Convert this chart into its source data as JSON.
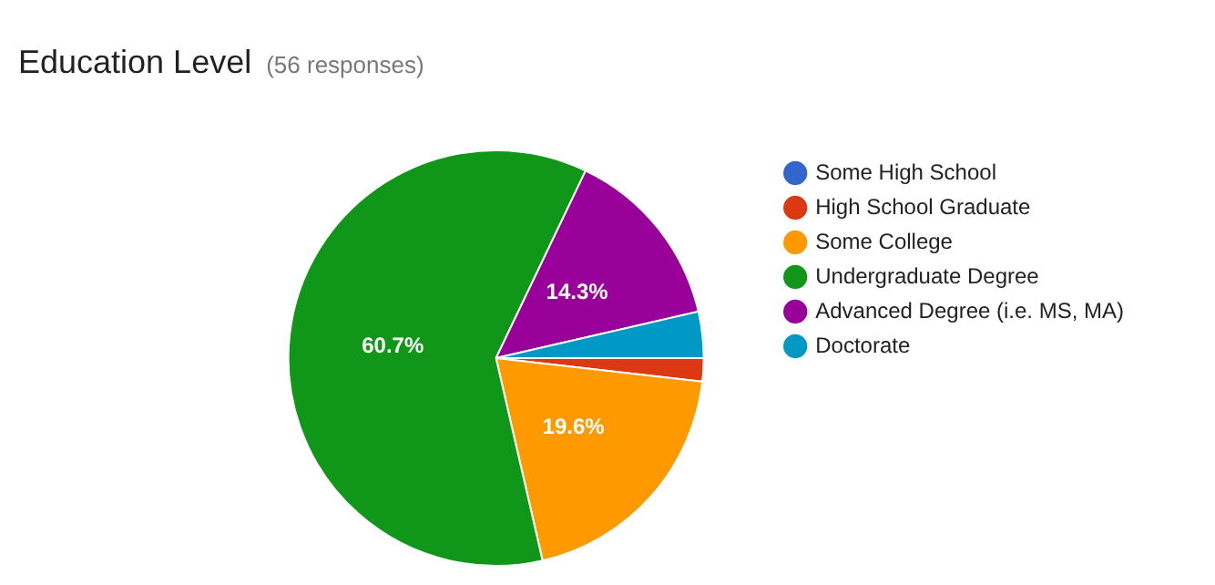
{
  "chart_data": {
    "type": "pie",
    "title": "Education Level",
    "subtitle": "(56 responses)",
    "categories": [
      "Some High School",
      "High School Graduate",
      "Some College",
      "Undergraduate Degree",
      "Advanced Degree (i.e. MS, MA)",
      "Doctorate"
    ],
    "values": [
      0,
      1.8,
      19.6,
      60.7,
      14.3,
      3.6
    ],
    "colors": [
      "#3366cc",
      "#dc3912",
      "#ff9900",
      "#109618",
      "#990099",
      "#0099c6"
    ],
    "value_labels": [
      null,
      null,
      "19.6%",
      "60.7%",
      "14.3%",
      null
    ],
    "legend": "right"
  }
}
